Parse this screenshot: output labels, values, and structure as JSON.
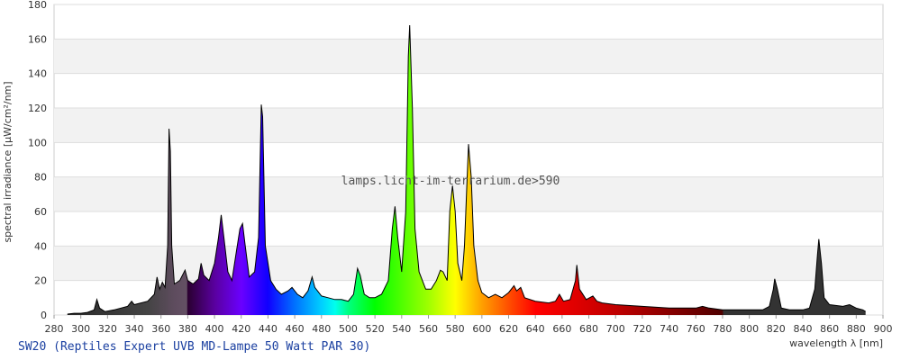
{
  "chart_data": {
    "type": "area",
    "caption": "SW20 (Reptiles Expert UVB MD-Lampe 50 Watt PAR 30)",
    "annotation": "lamps.licht-im-terrarium.de>590",
    "x_label": "wavelength λ [nm]",
    "y_label": "spectral irradiance [µW/cm²/nm]",
    "xlim": [
      280,
      900
    ],
    "ylim": [
      0,
      180
    ],
    "xticks": [
      280,
      300,
      320,
      340,
      360,
      380,
      400,
      420,
      440,
      460,
      480,
      500,
      520,
      540,
      560,
      580,
      600,
      620,
      640,
      660,
      680,
      700,
      720,
      740,
      760,
      780,
      800,
      820,
      840,
      860,
      880,
      900
    ],
    "yticks": [
      0,
      20,
      40,
      60,
      80,
      100,
      120,
      140,
      160,
      180
    ],
    "grid": true,
    "x": [
      290,
      295,
      300,
      305,
      310,
      312,
      314,
      318,
      325,
      330,
      335,
      338,
      340,
      345,
      350,
      355,
      357,
      359,
      361,
      363,
      365,
      366,
      367,
      368,
      370,
      374,
      378,
      380,
      384,
      388,
      390,
      392,
      396,
      400,
      403,
      405,
      407,
      410,
      413,
      416,
      419,
      421,
      423,
      426,
      430,
      433,
      435,
      436,
      438,
      442,
      446,
      450,
      455,
      458,
      462,
      466,
      470,
      473,
      475,
      480,
      485,
      490,
      495,
      500,
      504,
      507,
      509,
      512,
      516,
      520,
      525,
      530,
      533,
      535,
      537,
      540,
      543,
      545,
      546,
      548,
      550,
      553,
      558,
      562,
      566,
      569,
      571,
      574,
      576,
      578,
      580,
      582,
      585,
      587,
      589,
      590,
      592,
      594,
      597,
      600,
      605,
      610,
      615,
      620,
      624,
      626,
      629,
      632,
      640,
      650,
      655,
      658,
      661,
      666,
      670,
      671,
      673,
      678,
      683,
      686,
      690,
      700,
      720,
      740,
      760,
      765,
      770,
      780,
      790,
      800,
      810,
      815,
      818,
      819,
      821,
      824,
      830,
      840,
      845,
      849,
      851,
      852,
      854,
      856,
      860,
      870,
      875,
      880,
      885,
      887
    ],
    "values": [
      0.5,
      1,
      1,
      1.5,
      3,
      9,
      4,
      2,
      3,
      4,
      5,
      8,
      6,
      7,
      8,
      12,
      22,
      15,
      19,
      16,
      40,
      108,
      95,
      40,
      18,
      20,
      26,
      20,
      18,
      21,
      30,
      23,
      20,
      30,
      45,
      58,
      45,
      25,
      20,
      35,
      50,
      53,
      40,
      22,
      25,
      45,
      122,
      115,
      40,
      20,
      15,
      12,
      14,
      16,
      12,
      10,
      14,
      22,
      16,
      11,
      10,
      9,
      9,
      8,
      12,
      27,
      23,
      12,
      10,
      10,
      12,
      20,
      50,
      63,
      45,
      25,
      60,
      150,
      168,
      120,
      50,
      25,
      15,
      15,
      20,
      26,
      25,
      20,
      60,
      75,
      60,
      30,
      20,
      40,
      80,
      99,
      80,
      40,
      20,
      13,
      10,
      12,
      10,
      13,
      17,
      14,
      16,
      10,
      8,
      7,
      8,
      12,
      8,
      9,
      20,
      29,
      15,
      9,
      11,
      8,
      7,
      6,
      5,
      4,
      4,
      5,
      4,
      3,
      3,
      3,
      3,
      5,
      15,
      21,
      15,
      4,
      3,
      3,
      4,
      15,
      35,
      44,
      30,
      10,
      6,
      5,
      6,
      4,
      3,
      2
    ]
  }
}
